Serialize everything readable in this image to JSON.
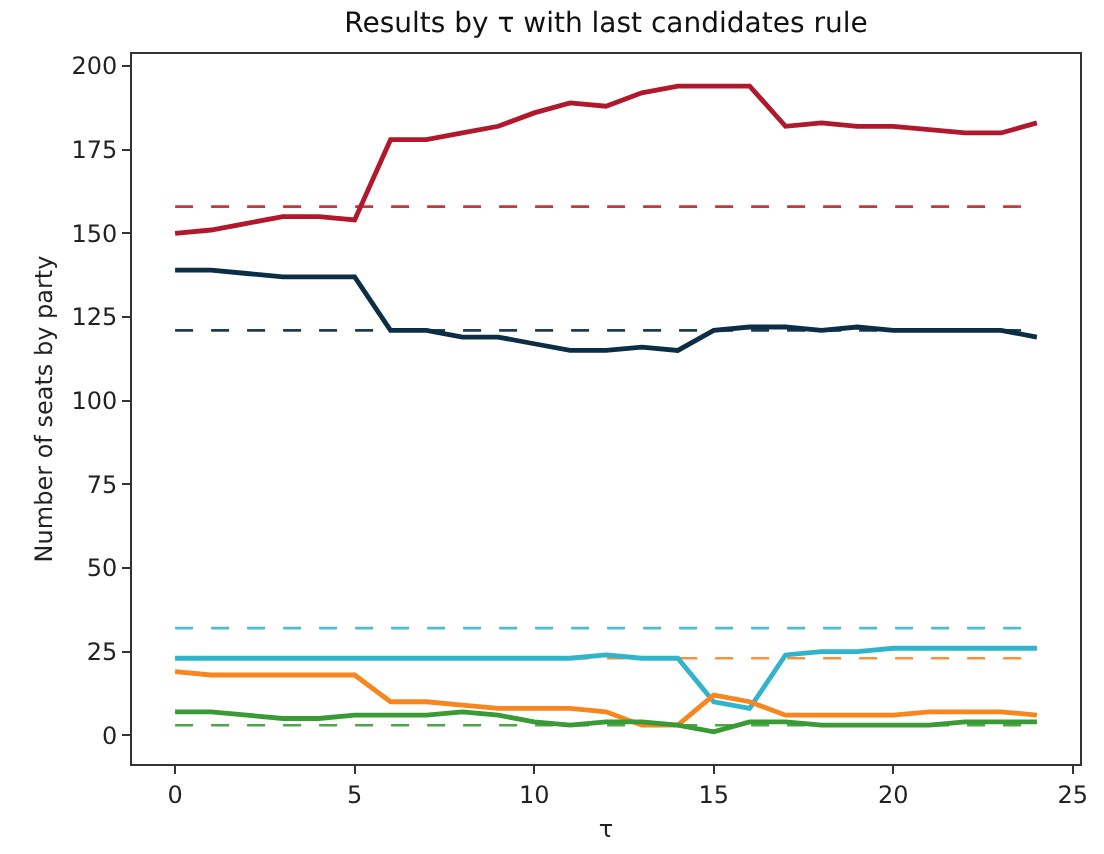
{
  "chart_data": {
    "type": "line",
    "title": "Results by τ with last candidates rule",
    "xlabel": "τ",
    "ylabel": "Number of seats by party",
    "x": [
      0,
      1,
      2,
      3,
      4,
      5,
      6,
      7,
      8,
      9,
      10,
      11,
      12,
      13,
      14,
      15,
      16,
      17,
      18,
      19,
      20,
      21,
      22,
      23,
      24
    ],
    "series": [
      {
        "color": "#b2182b",
        "values": [
          150,
          151,
          153,
          155,
          155,
          154,
          178,
          178,
          180,
          182,
          186,
          189,
          188,
          192,
          194,
          194,
          194,
          182,
          183,
          182,
          182,
          181,
          180,
          180,
          183
        ]
      },
      {
        "color": "#0b2d45",
        "values": [
          139,
          139,
          138,
          137,
          137,
          137,
          121,
          121,
          119,
          119,
          117,
          115,
          115,
          116,
          115,
          121,
          122,
          122,
          121,
          122,
          121,
          121,
          121,
          121,
          119
        ]
      },
      {
        "color": "#30b4cc",
        "values": [
          23,
          23,
          23,
          23,
          23,
          23,
          23,
          23,
          23,
          23,
          23,
          23,
          24,
          23,
          23,
          10,
          8,
          24,
          25,
          25,
          26,
          26,
          26,
          26,
          26
        ]
      },
      {
        "color": "#f7861f",
        "values": [
          19,
          18,
          18,
          18,
          18,
          18,
          10,
          10,
          9,
          8,
          8,
          8,
          7,
          3,
          3,
          12,
          10,
          6,
          6,
          6,
          6,
          7,
          7,
          7,
          6
        ]
      },
      {
        "color": "#3a9a35",
        "values": [
          7,
          7,
          6,
          5,
          5,
          6,
          6,
          6,
          7,
          6,
          4,
          3,
          4,
          4,
          3,
          1,
          4,
          4,
          3,
          3,
          3,
          3,
          4,
          4,
          4
        ]
      }
    ],
    "ref_lines": [
      {
        "axis": "y",
        "value": 158,
        "color": "#c8373f",
        "line_style": "dashed"
      },
      {
        "axis": "y",
        "value": 121,
        "color": "#1d3d55",
        "line_style": "dashed"
      },
      {
        "axis": "y",
        "value": 32,
        "color": "#4cbcd2",
        "line_style": "dashed"
      },
      {
        "axis": "y",
        "value": 23,
        "color": "#f8923a",
        "line_style": "dashed"
      },
      {
        "axis": "y",
        "value": 3,
        "color": "#4da64a",
        "line_style": "dashed"
      }
    ],
    "xlim": [
      -1.2,
      25.2
    ],
    "xticks": [
      0,
      5,
      10,
      15,
      20,
      25
    ],
    "ylim": [
      -8.6,
      203.6
    ],
    "yticks": [
      0,
      25,
      50,
      75,
      100,
      125,
      150,
      175,
      200
    ],
    "grid": false,
    "marker": "none",
    "line_style": "solid"
  }
}
